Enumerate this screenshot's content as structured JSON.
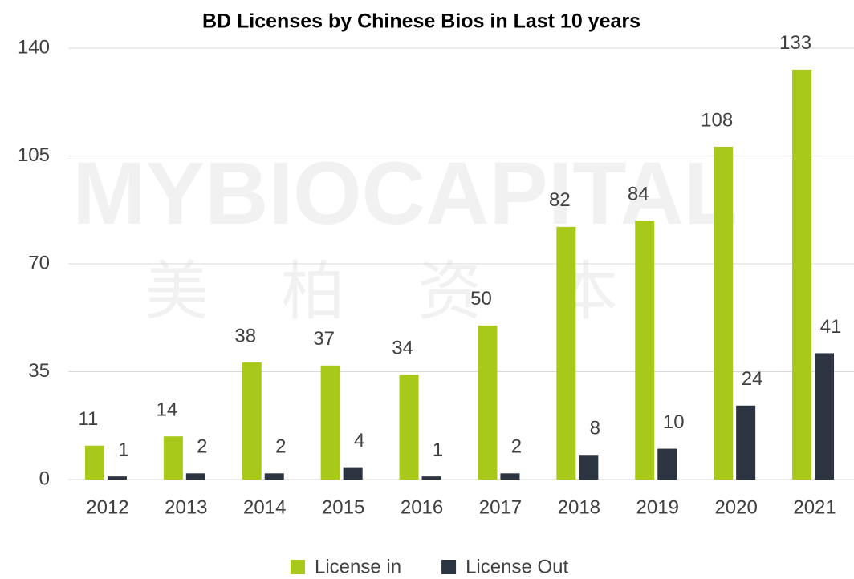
{
  "chart_data": {
    "type": "bar",
    "title": "BD Licenses by Chinese Bios in Last 10 years",
    "watermark": [
      "MYBIOCAPITAL",
      "美柏资本"
    ],
    "categories": [
      "2012",
      "2013",
      "2014",
      "2015",
      "2016",
      "2017",
      "2018",
      "2019",
      "2020",
      "2021"
    ],
    "series": [
      {
        "name": "License in",
        "color": "#a8c81a",
        "values": [
          11,
          14,
          38,
          37,
          34,
          50,
          82,
          84,
          108,
          133
        ]
      },
      {
        "name": "License Out",
        "color": "#2b3440",
        "values": [
          1,
          2,
          2,
          4,
          1,
          2,
          8,
          10,
          24,
          41
        ]
      }
    ],
    "ylim": [
      0,
      140
    ],
    "yticks": [
      0,
      35,
      70,
      105,
      140
    ],
    "grid": true,
    "legend": "bottom"
  }
}
